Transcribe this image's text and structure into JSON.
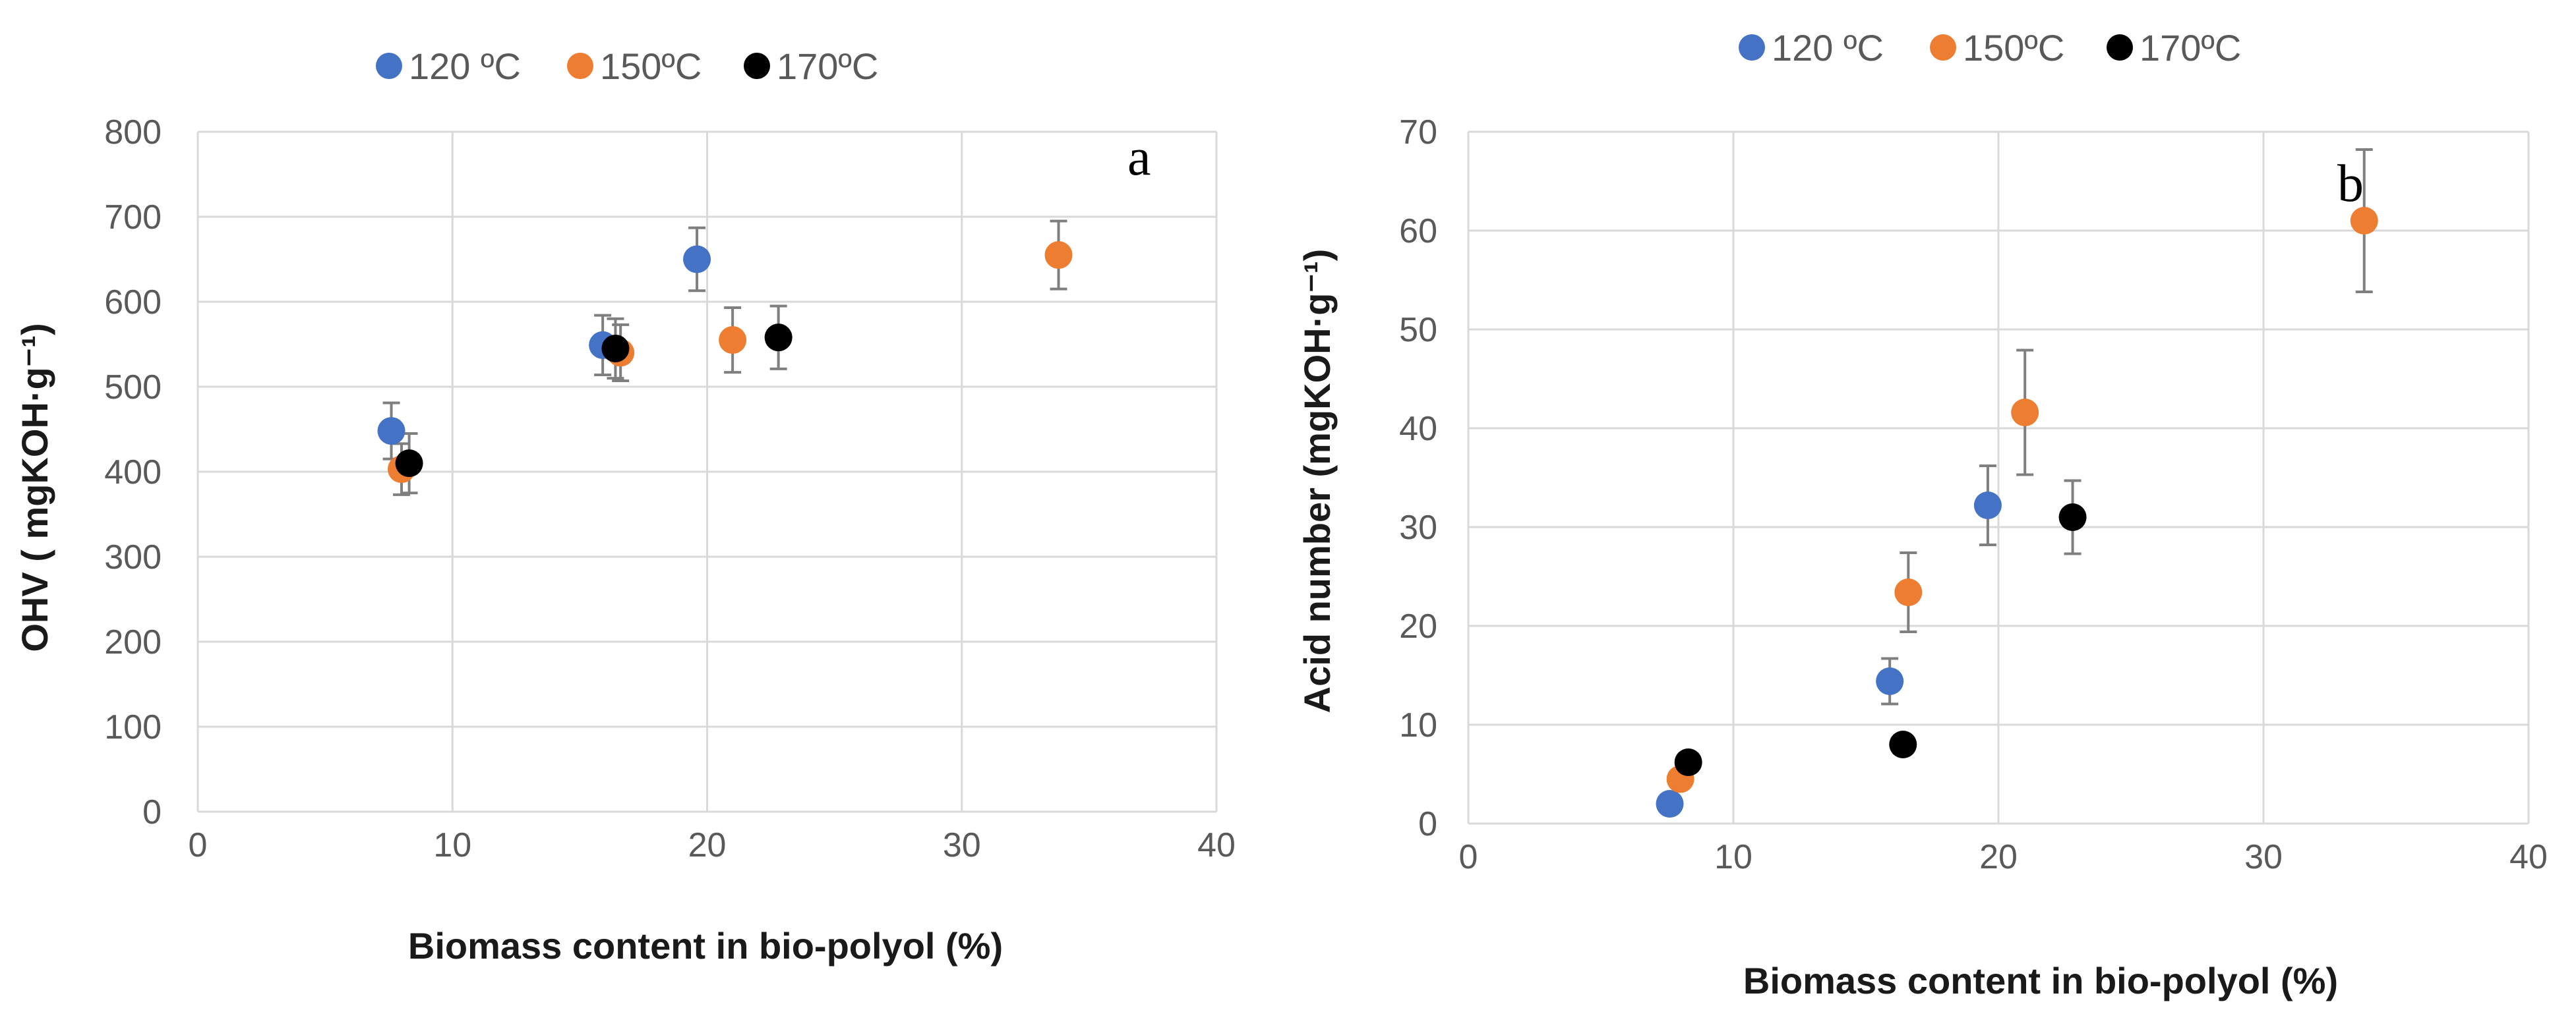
{
  "chart_data": [
    {
      "type": "scatter",
      "panel_label": "a",
      "xlabel": "Biomass content in bio-polyol  (%)",
      "ylabel": "OHV ( mgKOH·g⁻¹)",
      "xlim": [
        0,
        40
      ],
      "ylim": [
        0,
        800
      ],
      "xticks": [
        "0",
        "10",
        "20",
        "30",
        "40"
      ],
      "yticks": [
        "0",
        "100",
        "200",
        "300",
        "400",
        "500",
        "600",
        "700",
        "800"
      ],
      "legend": [
        "120 ºC",
        "150ºC",
        "170ºC"
      ],
      "series": [
        {
          "name": "120 ºC",
          "color": "#4472C4",
          "points": [
            {
              "x": 7.6,
              "y": 448,
              "err": 33
            },
            {
              "x": 15.9,
              "y": 549,
              "err": 35
            },
            {
              "x": 19.6,
              "y": 650,
              "err": 37
            }
          ]
        },
        {
          "name": "150ºC",
          "color": "#ED7D31",
          "points": [
            {
              "x": 8.0,
              "y": 403,
              "err": 30
            },
            {
              "x": 16.6,
              "y": 540,
              "err": 33
            },
            {
              "x": 21.0,
              "y": 555,
              "err": 38
            },
            {
              "x": 33.8,
              "y": 655,
              "err": 40
            }
          ]
        },
        {
          "name": "170ºC",
          "color": "#000000",
          "points": [
            {
              "x": 8.3,
              "y": 410,
              "err": 35
            },
            {
              "x": 16.4,
              "y": 545,
              "err": 35
            },
            {
              "x": 22.8,
              "y": 558,
              "err": 37
            }
          ]
        }
      ]
    },
    {
      "type": "scatter",
      "panel_label": "b",
      "xlabel": "Biomass content in bio-polyol (%)",
      "ylabel": "Acid number (mgKOH·g⁻¹)",
      "xlim": [
        0,
        40
      ],
      "ylim": [
        0,
        70
      ],
      "xticks": [
        "0",
        "10",
        "20",
        "30",
        "40"
      ],
      "yticks": [
        "0",
        "10",
        "20",
        "30",
        "40",
        "50",
        "60",
        "70"
      ],
      "legend": [
        "120 ºC",
        "150ºC",
        "170ºC"
      ],
      "series": [
        {
          "name": "120 ºC",
          "color": "#4472C4",
          "points": [
            {
              "x": 7.6,
              "y": 2,
              "err": 0
            },
            {
              "x": 15.9,
              "y": 14.4,
              "err": 2.3
            },
            {
              "x": 19.6,
              "y": 32.2,
              "err": 4
            }
          ]
        },
        {
          "name": "150ºC",
          "color": "#ED7D31",
          "points": [
            {
              "x": 8.0,
              "y": 4.5,
              "err": 0
            },
            {
              "x": 16.6,
              "y": 23.4,
              "err": 4
            },
            {
              "x": 21.0,
              "y": 41.6,
              "err": 6.3
            },
            {
              "x": 33.8,
              "y": 61,
              "err": 7.2
            }
          ]
        },
        {
          "name": "170ºC",
          "color": "#000000",
          "points": [
            {
              "x": 8.3,
              "y": 6.2,
              "err": 0
            },
            {
              "x": 16.4,
              "y": 8,
              "err": 0
            },
            {
              "x": 22.8,
              "y": 31,
              "err": 3.7
            }
          ]
        }
      ]
    }
  ]
}
